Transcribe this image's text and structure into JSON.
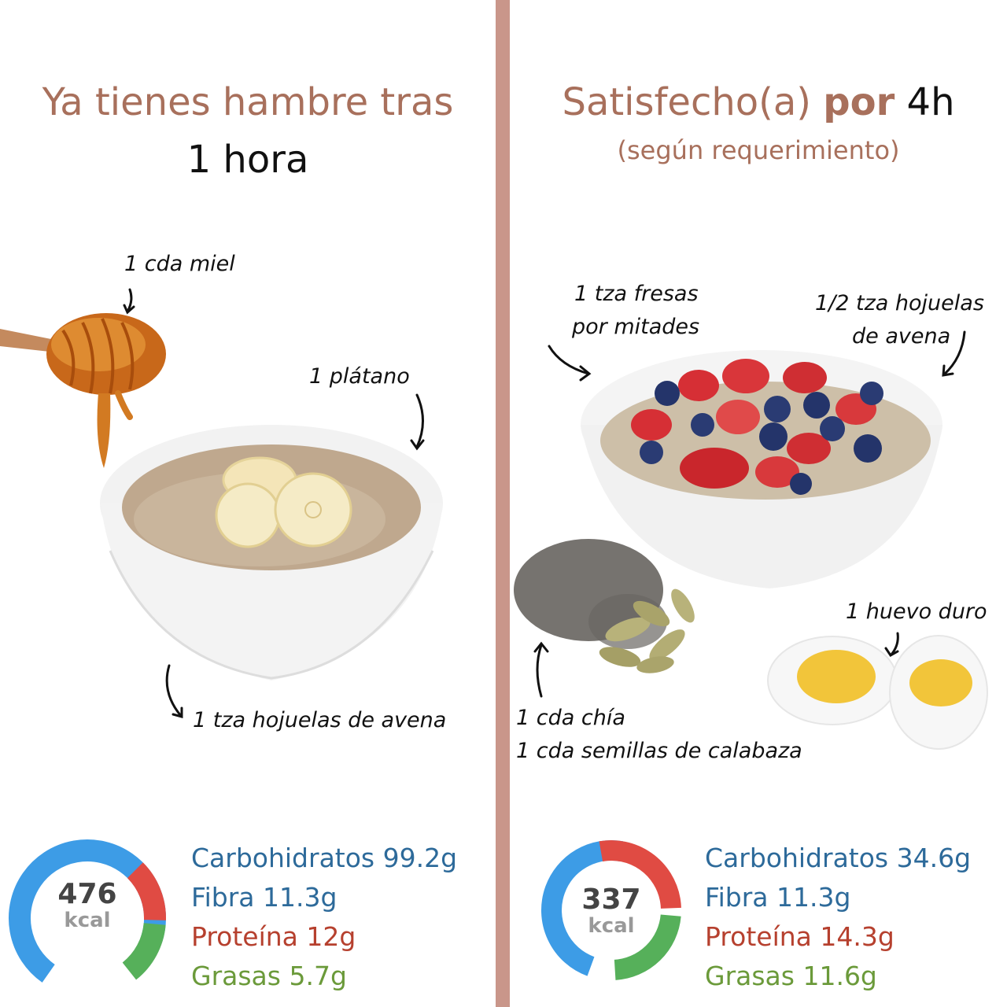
{
  "left": {
    "title_line1": "Ya tienes hambre tras",
    "title_line2": "1 hora",
    "labels": {
      "honey": "1 cda miel",
      "banana": "1 plátano",
      "oats": "1 tza hojuelas de avena"
    },
    "calories": {
      "value": "476",
      "unit": "kcal"
    },
    "macros": {
      "carbs": "Carbohidratos 99.2g",
      "fiber": "Fibra 11.3g",
      "protein": "Proteína 12g",
      "fat": "Grasas 5.7g"
    }
  },
  "right": {
    "title_part1": "Satisfecho(a)",
    "title_part2": "por",
    "title_part3": "4h",
    "subtitle": "(según requerimiento)",
    "labels": {
      "strawberries_1": "1 tza fresas",
      "strawberries_2": "por mitades",
      "oats_1": "1/2 tza hojuelas",
      "oats_2": "de avena",
      "egg": "1 huevo duro",
      "seeds_1": "1 cda chía",
      "seeds_2": "1 cda semillas de calabaza"
    },
    "calories": {
      "value": "337",
      "unit": "kcal"
    },
    "macros": {
      "carbs": "Carbohidratos 34.6g",
      "fiber": "Fibra 11.3g",
      "protein": "Proteína 14.3g",
      "fat": "Grasas 11.6g"
    }
  },
  "colors": {
    "divider": "#c9968a",
    "title_accent": "#a8705c",
    "donut_blue": "#3d9ce6",
    "donut_red": "#e04b43",
    "donut_green": "#56b05a",
    "carbs_text": "#2d6a9a",
    "protein_text": "#b6402e",
    "fat_text": "#6b9a3a"
  }
}
